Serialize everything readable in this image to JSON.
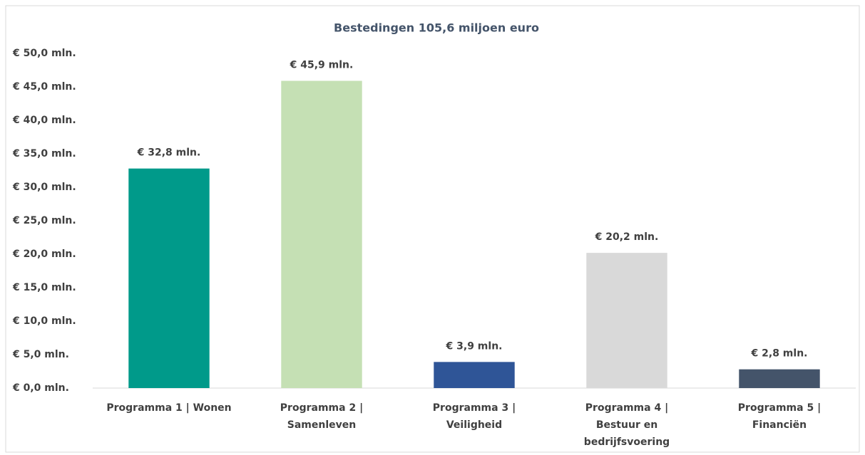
{
  "chart_data": {
    "type": "bar",
    "title": "Bestedingen 105,6 miljoen euro",
    "categories": [
      "Programma 1 | Wonen",
      "Programma 2 | Samenleven",
      "Programma 3 | Veiligheid",
      "Programma 4 | Bestuur en bedrijfsvoering",
      "Programma 5 | Financiën"
    ],
    "values": [
      32.8,
      45.9,
      3.9,
      20.2,
      2.8
    ],
    "value_labels": [
      "€ 32,8 mln.",
      "€ 45,9 mln.",
      "€ 3,9 mln.",
      "€ 20,2 mln.",
      "€ 2,8 mln."
    ],
    "colors": [
      "#009a8a",
      "#c5e0b4",
      "#2f5597",
      "#d9d9d9",
      "#44546a"
    ],
    "ylim": [
      0,
      50
    ],
    "yticks": [
      {
        "value": 0,
        "label": "€ 0,0 mln."
      },
      {
        "value": 5,
        "label": "€ 5,0 mln."
      },
      {
        "value": 10,
        "label": "€ 10,0 mln."
      },
      {
        "value": 15,
        "label": "€ 15,0 mln."
      },
      {
        "value": 20,
        "label": "€ 20,0 mln."
      },
      {
        "value": 25,
        "label": "€ 25,0 mln."
      },
      {
        "value": 30,
        "label": "€ 30,0 mln."
      },
      {
        "value": 35,
        "label": "€ 35,0 mln."
      },
      {
        "value": 40,
        "label": "€ 40,0 mln."
      },
      {
        "value": 45,
        "label": "€ 45,0 mln."
      },
      {
        "value": 50,
        "label": "€ 50,0 mln."
      }
    ],
    "grid": false
  }
}
